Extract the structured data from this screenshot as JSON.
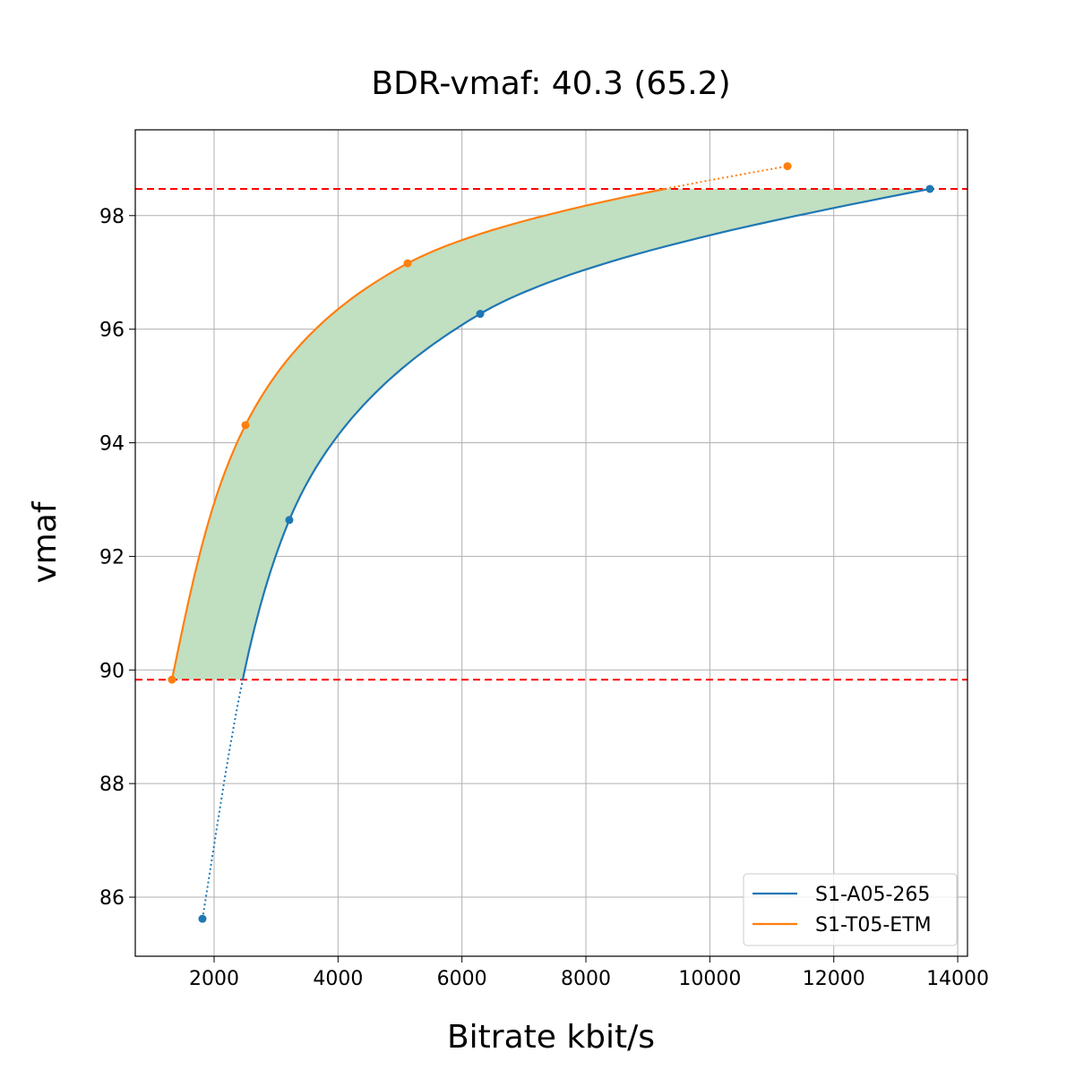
{
  "chart_data": {
    "type": "line",
    "title": "BDR-vmaf: 40.3 (65.2)",
    "xlabel": "Bitrate kbit/s",
    "ylabel": "vmaf",
    "xlim": [
      728,
      14158
    ],
    "ylim": [
      84.96,
      99.51
    ],
    "xticks": [
      2000,
      4000,
      6000,
      8000,
      10000,
      12000,
      14000
    ],
    "yticks": [
      86,
      88,
      90,
      92,
      94,
      96,
      98
    ],
    "grid": true,
    "legend_position": "bottom-right",
    "series": [
      {
        "name": "S1-A05-265",
        "color": "#1f77b4",
        "x": [
          1812,
          3214,
          6294,
          13551
        ],
        "y": [
          85.62,
          92.64,
          96.27,
          98.47
        ]
      },
      {
        "name": "S1-T05-ETM",
        "color": "#ff7f0e",
        "x": [
          1320,
          2506,
          5123,
          11253
        ],
        "y": [
          89.83,
          94.31,
          97.16,
          98.87
        ]
      }
    ],
    "hlines": {
      "values": [
        89.83,
        98.47
      ],
      "color": "#ff0000",
      "style": "dashed"
    },
    "fill_between": {
      "color": "#c1dfc1",
      "ymin": 89.83,
      "ymax": 98.47
    }
  }
}
